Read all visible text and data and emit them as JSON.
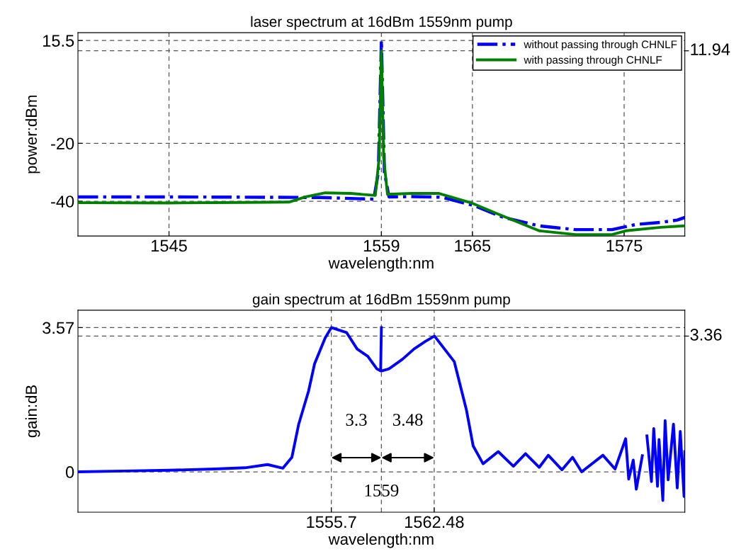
{
  "chart_data": [
    {
      "type": "line",
      "title": "laser spectrum at 16dBm 1559nm pump",
      "xlabel": "wavelength:nm",
      "ylabel": "power:dBm",
      "xlim": [
        1539,
        1579
      ],
      "xticks": [
        1545,
        1559,
        1565,
        1575
      ],
      "ylim": [
        -52,
        18.2
      ],
      "yticks": [
        -40,
        -20,
        15.5
      ],
      "ref_lines": [
        {
          "axis": "y",
          "value": 11.94,
          "label": "11.94"
        }
      ],
      "grid": true,
      "legend": "top right",
      "series": [
        {
          "name": "without passing through CHNLF",
          "color": "#0000ff",
          "line_style": "dashdot",
          "x": [
            1539,
            1545,
            1550,
            1555,
            1558.5,
            1558.8,
            1559,
            1559.2,
            1559.5,
            1561,
            1563,
            1565.1,
            1567,
            1569.4,
            1571.8,
            1574.2,
            1575.8,
            1577.4,
            1578.5,
            1579
          ],
          "values": [
            -38.5,
            -38.5,
            -38.6,
            -38.7,
            -39.3,
            -30,
            15.5,
            -30,
            -38.5,
            -38.4,
            -38.6,
            -41.5,
            -45.5,
            -48.5,
            -49.8,
            -49.8,
            -48,
            -47.3,
            -46.5,
            -45.6
          ]
        },
        {
          "name": "with passing through CHNLF",
          "color": "#008000",
          "line_style": "solid",
          "x": [
            1539,
            1545,
            1550,
            1552.9,
            1554,
            1555.3,
            1557,
            1558.6,
            1558.85,
            1559,
            1559.15,
            1559.4,
            1561,
            1562.8,
            1565,
            1566.5,
            1569.4,
            1571.8,
            1574.2,
            1575.1,
            1577.4,
            1579
          ],
          "values": [
            -40.5,
            -40.6,
            -40.4,
            -40.3,
            -38.5,
            -37.1,
            -37.3,
            -38,
            -25,
            11.94,
            -25,
            -37.6,
            -37.3,
            -37.3,
            -40.7,
            -44,
            -50.2,
            -51.5,
            -51.5,
            -50.2,
            -49,
            -48.5
          ]
        }
      ]
    },
    {
      "type": "line",
      "title": "gain spectrum at 16dBm 1559nm pump",
      "xlabel": "wavelength:nm",
      "ylabel": "gain:dB",
      "xlim": [
        1539,
        1579
      ],
      "xticks": [
        1555.7,
        1562.48
      ],
      "ylim": [
        -1,
        4
      ],
      "yticks": [
        0,
        3.57
      ],
      "ref_lines": [
        {
          "axis": "y",
          "value": 3.36,
          "label": "3.36"
        },
        {
          "axis": "x",
          "value": 1559,
          "label": "1559"
        }
      ],
      "grid": true,
      "annotations": [
        "3.3",
        "3.48"
      ],
      "series": [
        {
          "color": "#0000ff",
          "x": [
            1539,
            1542,
            1545,
            1548,
            1550,
            1551.5,
            1552.5,
            1553.1,
            1553.55,
            1554.2,
            1554.6,
            1555.3,
            1555.7,
            1556.7,
            1557.4,
            1558.1,
            1558.7,
            1558.95,
            1559,
            1559.02,
            1559.05,
            1559.5,
            1560.4,
            1561.15,
            1561.9,
            1562.5,
            1563.8,
            1564.6,
            1565.05,
            1565.7,
            1566.7,
            1567.7,
            1568.5,
            1569.4,
            1570,
            1570.9,
            1571.6,
            1572.2,
            1573.6,
            1574.4,
            1575.1,
            1575.3,
            1575.6,
            1575.8,
            1576.2,
            1576.4,
            1576.5,
            1576.8,
            1576.95,
            1577.2,
            1577.3,
            1577.55,
            1577.7,
            1577.9,
            1578.25,
            1578.5,
            1578.7,
            1578.95,
            1579
          ],
          "values": [
            0,
            0.02,
            0.04,
            0.07,
            0.1,
            0.18,
            0.09,
            0.36,
            1.18,
            2.0,
            2.68,
            3.32,
            3.57,
            3.45,
            3.04,
            2.86,
            2.55,
            2.5,
            3.57,
            null,
            2.5,
            2.55,
            2.79,
            3.04,
            3.23,
            3.36,
            2.73,
            1.54,
            0.64,
            0.2,
            0.5,
            0.14,
            0.45,
            0.11,
            0.41,
            0.05,
            0.36,
            0,
            0.41,
            0.07,
            0.82,
            -0.18,
            0.29,
            -0.43,
            0.4,
            null,
            0.89,
            -0.24,
            1.07,
            -0.36,
            0.8,
            -0.71,
            1.27,
            -0.2,
            1.18,
            -0.4,
            1.0,
            -0.61,
            0.5
          ]
        }
      ]
    }
  ]
}
